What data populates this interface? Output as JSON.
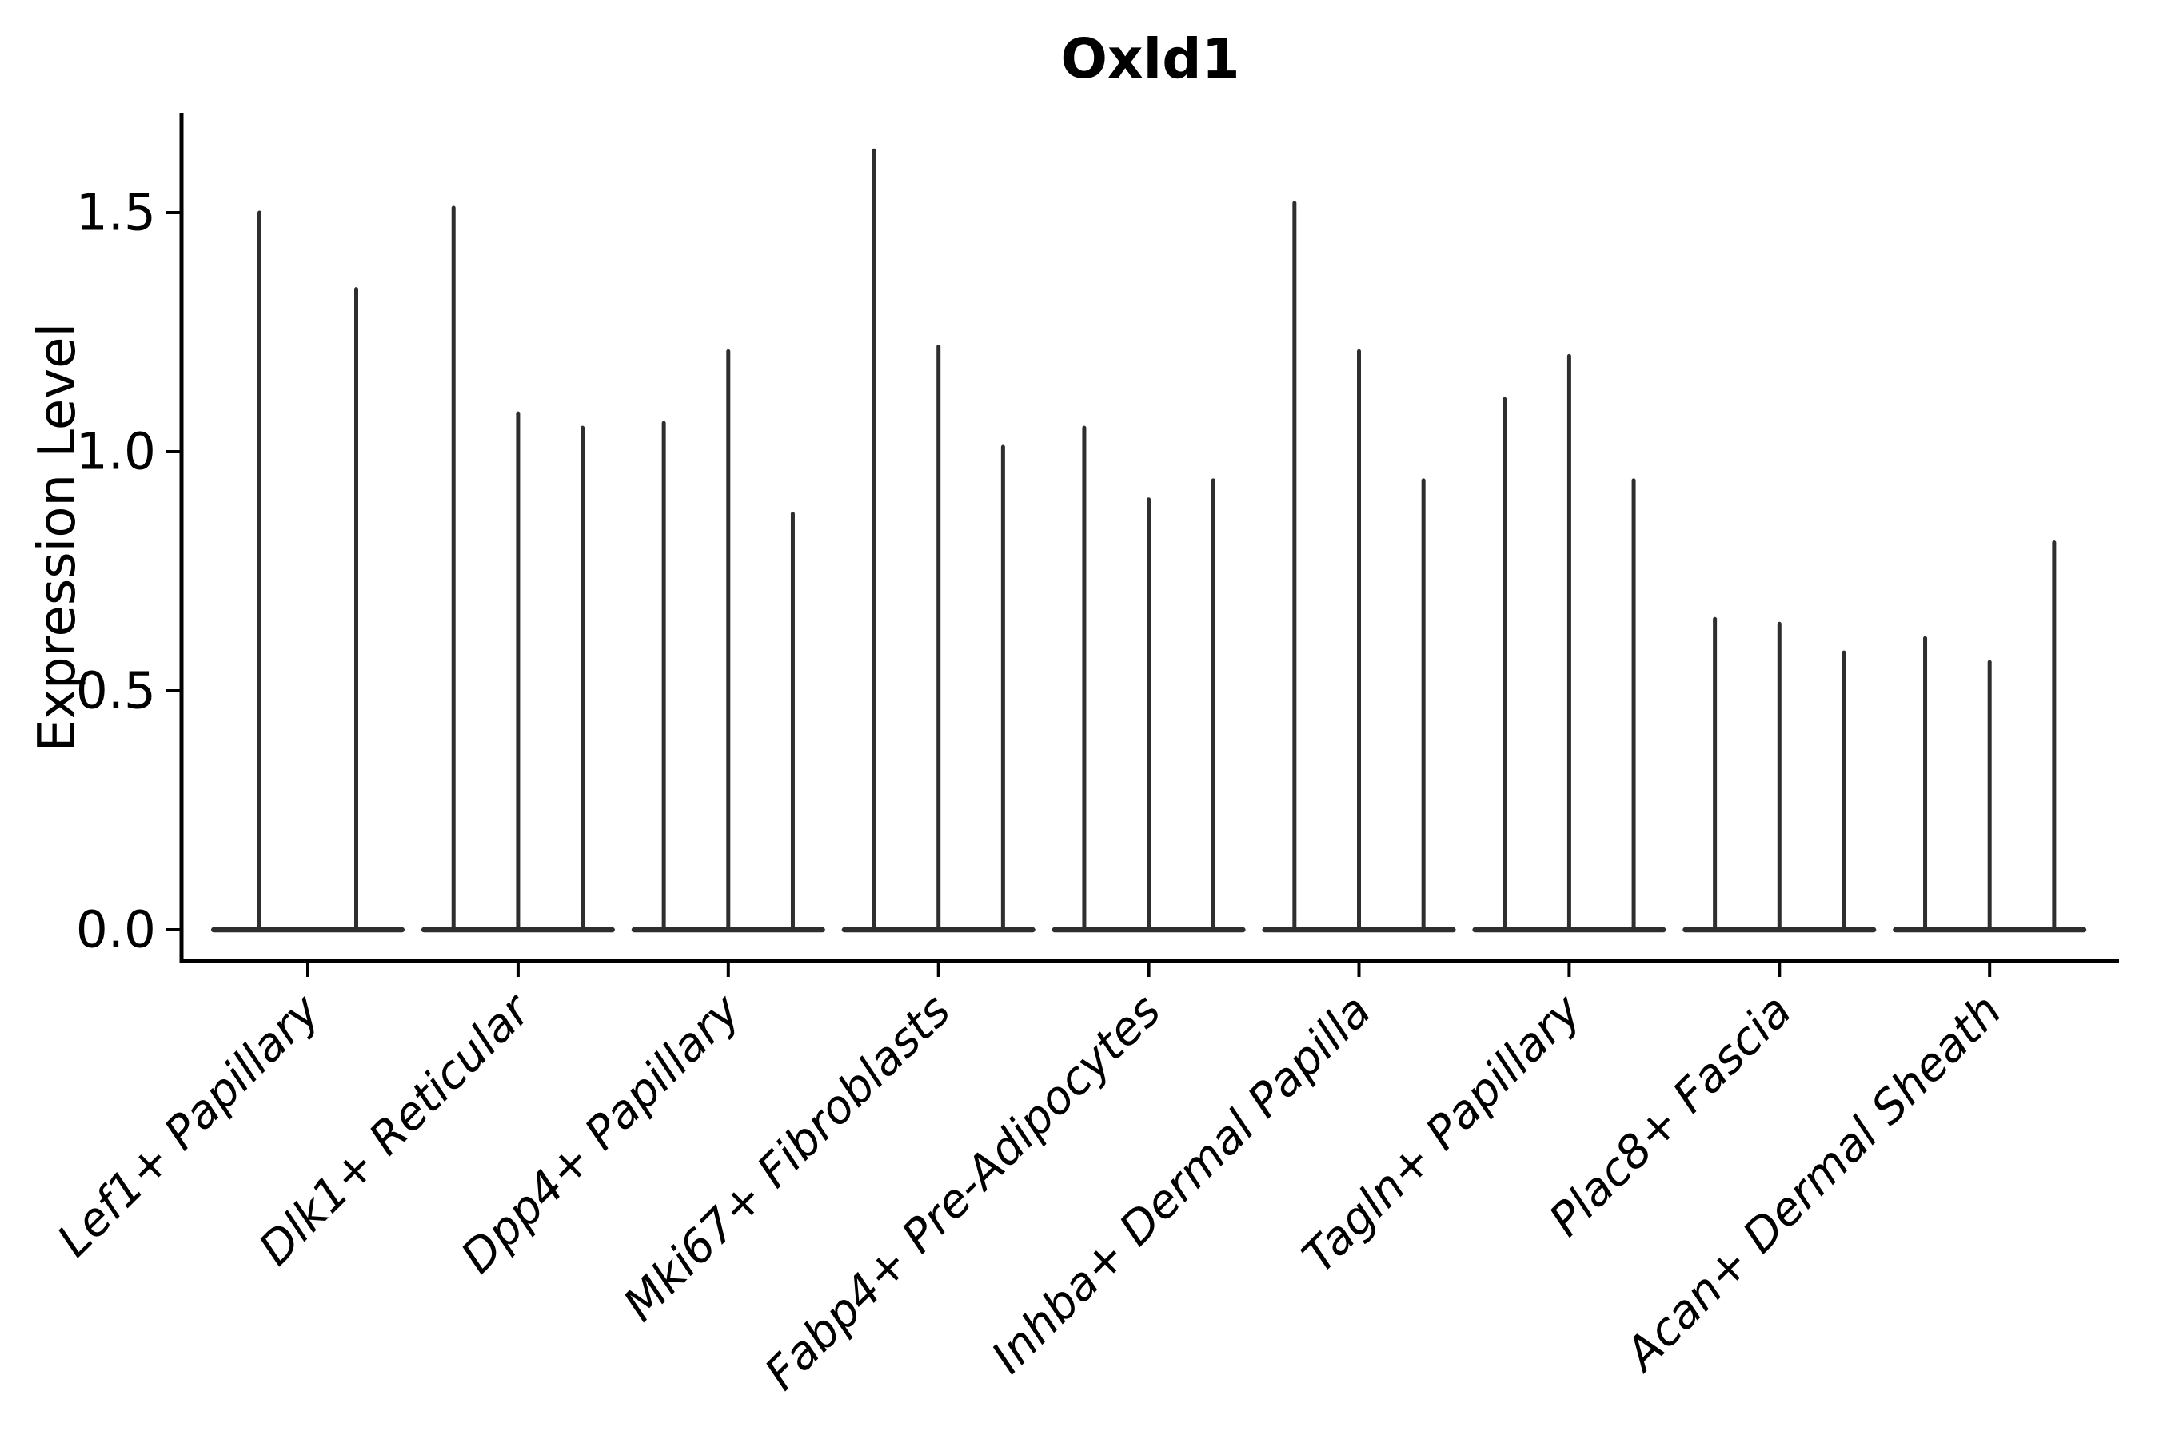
{
  "chart_data": {
    "type": "violin",
    "title": "Oxld1",
    "ylabel": "Expression Level",
    "xlabel": "",
    "yticks": [
      "0.0",
      "0.5",
      "1.0",
      "1.5"
    ],
    "ytick_values": [
      0.0,
      0.5,
      1.0,
      1.5
    ],
    "ylim": [
      -0.065,
      1.71
    ],
    "legend": "none",
    "grid": false,
    "x_tick_label_rotation_deg": 45,
    "x_tick_label_style": "italic",
    "note": "Needle-like violins: dense flat base at expression 0 with a thin spike up to each violin's maximum expression value",
    "categories": [
      "Lef1+ Papillary",
      "Dlk1+ Reticular",
      "Dpp4+ Papillary",
      "Mki67+ Fibroblasts",
      "Fabp4+ Pre-Adipocytes",
      "Inhba+ Dermal Papilla",
      "Tagln+ Papillary",
      "Plac8+ Fascia",
      "Acan+ Dermal Sheath"
    ],
    "groups": [
      {
        "label": "Lef1+ Papillary",
        "spike_maxima": [
          1.5,
          1.34
        ]
      },
      {
        "label": "Dlk1+ Reticular",
        "spike_maxima": [
          1.51,
          1.08,
          1.05
        ]
      },
      {
        "label": "Dpp4+ Papillary",
        "spike_maxima": [
          1.06,
          1.21,
          0.87
        ]
      },
      {
        "label": "Mki67+ Fibroblasts",
        "spike_maxima": [
          1.63,
          1.22,
          1.01
        ]
      },
      {
        "label": "Fabp4+ Pre-Adipocytes",
        "spike_maxima": [
          1.05,
          0.9,
          0.94
        ]
      },
      {
        "label": "Inhba+ Dermal Papilla",
        "spike_maxima": [
          1.52,
          1.21,
          0.94
        ]
      },
      {
        "label": "Tagln+ Papillary",
        "spike_maxima": [
          1.11,
          1.2,
          0.94
        ]
      },
      {
        "label": "Plac8+ Fascia",
        "spike_maxima": [
          0.65,
          0.64,
          0.58
        ]
      },
      {
        "label": "Acan+ Dermal Sheath",
        "spike_maxima": [
          0.61,
          0.56,
          0.81
        ]
      }
    ],
    "colors": {
      "violin": "#2e2e2e",
      "axis": "#000000",
      "text": "#000000",
      "background": "#ffffff"
    }
  }
}
